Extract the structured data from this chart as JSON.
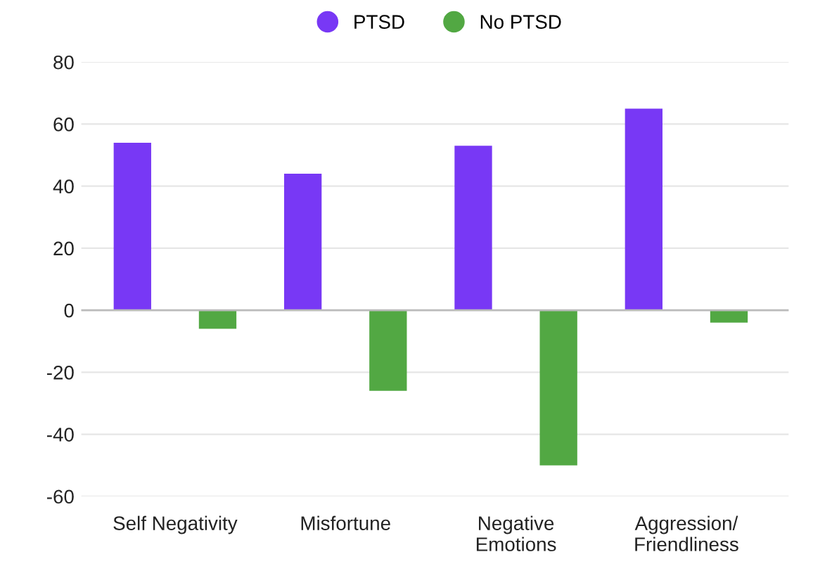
{
  "chart_data": {
    "type": "bar",
    "categories": [
      "Self Negativity",
      "Misfortune",
      "Negative\nEmotions",
      "Aggression/\nFriendliness"
    ],
    "series": [
      {
        "name": "PTSD",
        "color": "#7838f5",
        "values": [
          54,
          44,
          53,
          65
        ]
      },
      {
        "name": "No PTSD",
        "color": "#52a843",
        "values": [
          -6,
          -26,
          -50,
          -4
        ]
      }
    ],
    "ylim": [
      -60,
      80
    ],
    "yticks": [
      -60,
      -40,
      -20,
      0,
      20,
      40,
      60,
      80
    ],
    "grid": "y",
    "legend": "top"
  }
}
